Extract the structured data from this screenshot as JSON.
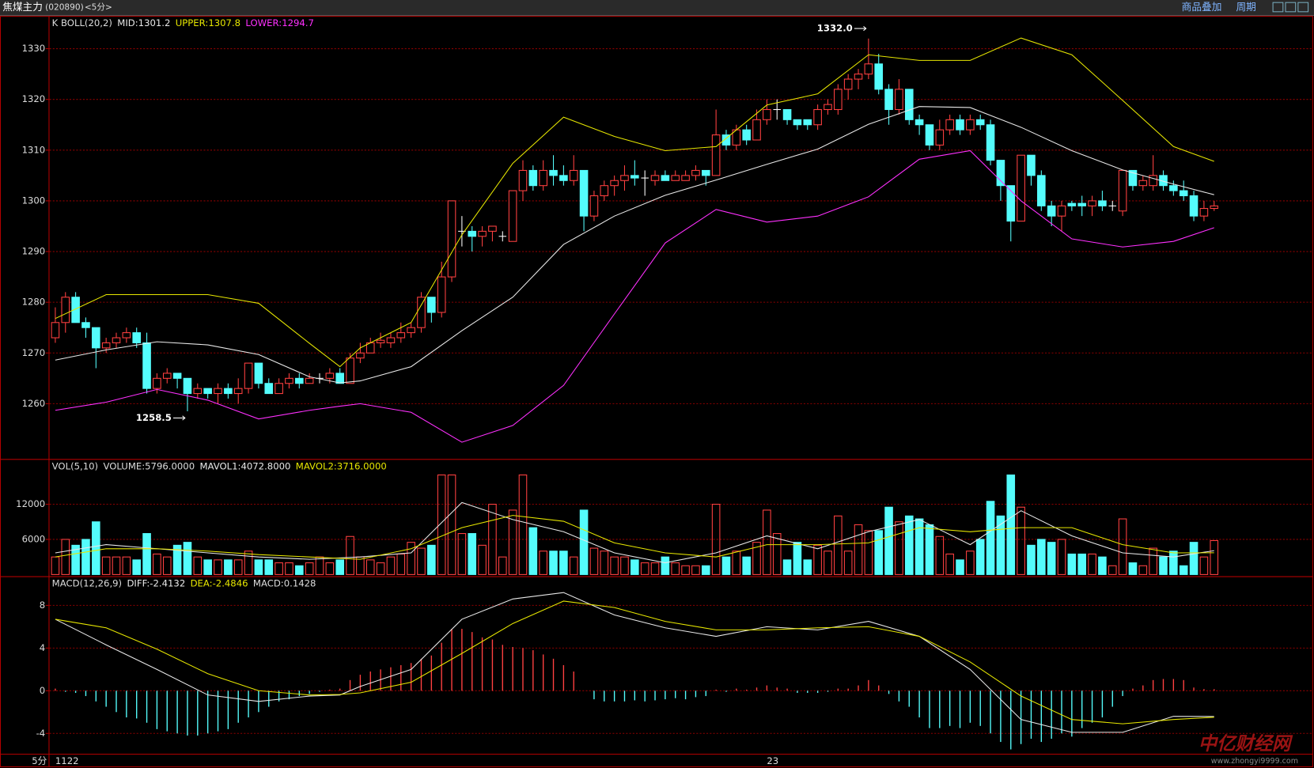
{
  "header": {
    "title": "焦煤主力",
    "code": "(020890)",
    "period": "<5分>",
    "buttons": [
      "商品叠加",
      "周期"
    ]
  },
  "axis": {
    "period": "5分",
    "labels": [
      {
        "index": 0,
        "label": "1122"
      },
      {
        "index": 70,
        "label": "23"
      }
    ]
  },
  "watermark": {
    "title": "中亿财经网",
    "url": "www.zhongyi9999.com"
  },
  "chart_data": [
    {
      "type": "candlestick",
      "title": "K  BOLL(20,2)",
      "up_color": "#ff4040",
      "down_color": "#54fcfc",
      "grid": true,
      "open": [
        1273,
        1276,
        1281,
        1276,
        1275,
        1271,
        1272,
        1273,
        1274,
        1272,
        1263,
        1265,
        1266,
        1265,
        1262,
        1263,
        1262,
        1263,
        1262,
        1263,
        1268,
        1264,
        1262,
        1264,
        1265,
        1264,
        1265,
        1265,
        1266,
        1264,
        1269,
        1270,
        1272,
        1272,
        1273,
        1274,
        1275,
        1281,
        1278,
        1285,
        1294,
        1294,
        1293,
        1294,
        1293,
        1292,
        1302,
        1306,
        1303,
        1306,
        1305,
        1304,
        1306,
        1297,
        1301,
        1303,
        1304,
        1305,
        1304.5,
        1304,
        1305,
        1304,
        1304,
        1305,
        1306,
        1305,
        1313,
        1311,
        1314,
        1312,
        1316,
        1318,
        1318,
        1316,
        1316,
        1315,
        1318,
        1318,
        1322,
        1324,
        1325,
        1327,
        1322,
        1318,
        1322,
        1316,
        1315,
        1311,
        1314,
        1316,
        1314,
        1316,
        1315,
        1308,
        1303,
        1296,
        1309,
        1305,
        1299,
        1297,
        1299.5,
        1299.5,
        1299,
        1300,
        1299,
        1298,
        1306,
        1303,
        1303,
        1305,
        1303,
        1302,
        1301,
        1297,
        1298.5
      ],
      "high": [
        1279,
        1282,
        1282,
        1277,
        1275,
        1273,
        1274,
        1275,
        1275,
        1274,
        1266,
        1267,
        1266,
        1265,
        1264,
        1263,
        1264,
        1264,
        1265,
        1268,
        1268,
        1265,
        1265,
        1266,
        1266,
        1266,
        1266,
        1267,
        1267,
        1270,
        1272,
        1273,
        1274,
        1274,
        1276,
        1276,
        1282,
        1281,
        1288,
        1300,
        1297,
        1295,
        1295,
        1295,
        1294,
        1302,
        1308,
        1307,
        1308,
        1309,
        1307,
        1309,
        1306,
        1302,
        1304,
        1305,
        1307,
        1308,
        1306,
        1306,
        1306,
        1306,
        1306,
        1307,
        1306,
        1318,
        1314,
        1315,
        1315,
        1318,
        1320,
        1320,
        1318,
        1316,
        1316,
        1319,
        1320,
        1323,
        1325,
        1326,
        1332,
        1329,
        1323,
        1324,
        1322,
        1317,
        1315,
        1316,
        1317,
        1317,
        1317,
        1317,
        1316,
        1308,
        1303,
        1309,
        1309,
        1306,
        1300,
        1300,
        1300,
        1301,
        1301,
        1302,
        1300,
        1306,
        1306,
        1305,
        1309,
        1306,
        1304,
        1304,
        1302,
        1300,
        1300
      ],
      "low": [
        1272,
        1274,
        1276,
        1273,
        1267,
        1270,
        1271,
        1272,
        1271,
        1262,
        1262,
        1264,
        1263,
        1258.5,
        1261,
        1261,
        1260,
        1261,
        1260,
        1262,
        1263,
        1262,
        1262,
        1263,
        1263,
        1264,
        1264,
        1264,
        1264,
        1264,
        1268,
        1270,
        1271,
        1271,
        1272,
        1273,
        1274,
        1276,
        1277,
        1284,
        1291,
        1290,
        1291,
        1292,
        1292,
        1292,
        1300,
        1302,
        1302,
        1303,
        1303,
        1303,
        1294,
        1296,
        1300,
        1301,
        1302,
        1303,
        1301,
        1303,
        1304,
        1304,
        1304,
        1304,
        1303,
        1305,
        1310,
        1310,
        1311,
        1312,
        1315,
        1316,
        1315,
        1314,
        1314,
        1314,
        1317,
        1317,
        1320,
        1322,
        1324,
        1321,
        1315,
        1317,
        1315,
        1313,
        1310,
        1310,
        1313,
        1313,
        1313,
        1314,
        1307,
        1300,
        1292,
        1296,
        1303,
        1298,
        1295,
        1294,
        1298,
        1297,
        1297,
        1298,
        1298,
        1297,
        1302,
        1302,
        1302,
        1302,
        1301,
        1300,
        1296,
        1296,
        1298
      ],
      "close": [
        1276,
        1281,
        1276,
        1275,
        1271,
        1272,
        1273,
        1274,
        1272,
        1263,
        1265,
        1266,
        1265,
        1262,
        1263,
        1262,
        1263,
        1262,
        1263,
        1268,
        1264,
        1262,
        1264,
        1265,
        1264,
        1265,
        1265,
        1266,
        1264,
        1269,
        1270,
        1272,
        1272.5,
        1273,
        1274,
        1275,
        1281,
        1278,
        1285,
        1300,
        1294,
        1293,
        1294,
        1295,
        1293,
        1302,
        1306,
        1303,
        1306,
        1305,
        1304,
        1306,
        1297,
        1301,
        1303,
        1304,
        1305,
        1304.5,
        1304.5,
        1305,
        1304,
        1305,
        1305,
        1306,
        1305,
        1313,
        1311,
        1314,
        1312,
        1316,
        1318,
        1318,
        1316,
        1315,
        1315,
        1318,
        1319,
        1322,
        1324,
        1325,
        1327,
        1322,
        1318,
        1322,
        1316,
        1315,
        1311,
        1314,
        1316,
        1314,
        1316,
        1315,
        1308,
        1303,
        1296,
        1309,
        1305,
        1299,
        1297,
        1299,
        1299,
        1299,
        1300,
        1299,
        1299,
        1306,
        1303,
        1304,
        1305,
        1303,
        1302,
        1301,
        1297,
        1298.5,
        1299
      ],
      "series": [
        {
          "name": "MID:1301.2",
          "color": "#e8e8e8",
          "x": [
            0,
            5,
            10,
            15,
            20,
            25,
            28,
            30,
            35,
            40,
            45,
            50,
            55,
            60,
            65,
            70,
            75,
            80,
            85,
            90,
            95,
            100,
            105,
            110,
            114
          ],
          "values": [
            1268.6,
            1270.6,
            1272.2,
            1271.6,
            1269.7,
            1265.3,
            1264.1,
            1264.5,
            1267.3,
            1274.4,
            1281,
            1291.4,
            1297,
            1301.1,
            1304.1,
            1307.2,
            1310.2,
            1315.1,
            1318.6,
            1318.4,
            1314.5,
            1309.9,
            1306.1,
            1303.3,
            1301.2
          ]
        },
        {
          "name": "UPPER:1307.8",
          "color": "#e6e600",
          "x": [
            0,
            5,
            10,
            15,
            20,
            25,
            28,
            30,
            35,
            40,
            45,
            50,
            55,
            60,
            65,
            70,
            75,
            80,
            85,
            90,
            95,
            100,
            105,
            110,
            114
          ],
          "values": [
            1276.8,
            1281.5,
            1281.5,
            1281.5,
            1279.8,
            1271.9,
            1267.3,
            1271,
            1276,
            1293.3,
            1307.4,
            1316.5,
            1312.7,
            1309.9,
            1310.7,
            1318.9,
            1321.1,
            1328.8,
            1327.7,
            1327.7,
            1332.1,
            1328.8,
            1319.8,
            1310.7,
            1307.8
          ]
        },
        {
          "name": "LOWER:1294.7",
          "color": "#ff30ff",
          "x": [
            0,
            5,
            10,
            15,
            20,
            25,
            28,
            30,
            35,
            40,
            45,
            50,
            55,
            60,
            65,
            70,
            75,
            80,
            85,
            90,
            95,
            100,
            105,
            110,
            114
          ],
          "values": [
            1258.7,
            1260.3,
            1262.8,
            1260.7,
            1257,
            1258.7,
            1259.5,
            1260,
            1258.3,
            1252.4,
            1255.7,
            1263.6,
            1277.7,
            1291.7,
            1298.3,
            1295.8,
            1297,
            1300.8,
            1308.2,
            1309.9,
            1300,
            1292.5,
            1290.9,
            1292,
            1294.7
          ]
        }
      ],
      "annotations": [
        "1332.0",
        "1258.5"
      ],
      "ylim": [
        1249.1,
        1336.3
      ],
      "yticks": [
        1260,
        1270,
        1280,
        1290,
        1300,
        1310,
        1320,
        1330
      ]
    },
    {
      "type": "bar",
      "title": "VOL(5,10)",
      "label": "VOLUME:5796.0000",
      "up_color": "#ff4040",
      "down_color": "#54fcfc",
      "grid": true,
      "values": [
        3000,
        6000,
        5000,
        6000,
        9000,
        3000,
        3000,
        3000,
        2500,
        7000,
        3500,
        3000,
        5000,
        5500,
        3000,
        2500,
        2500,
        2500,
        2500,
        4000,
        2500,
        2500,
        2000,
        2000,
        1500,
        2000,
        3000,
        2000,
        2500,
        6500,
        3000,
        2500,
        2000,
        3000,
        3500,
        5500,
        4500,
        5000,
        17000,
        17000,
        7000,
        7000,
        5000,
        12000,
        3000,
        11000,
        17000,
        8000,
        4000,
        4000,
        4000,
        3000,
        11000,
        4500,
        4000,
        3000,
        3000,
        2500,
        2000,
        2000,
        3000,
        2000,
        1500,
        1500,
        1500,
        12000,
        3000,
        4000,
        3000,
        5500,
        11000,
        7000,
        2500,
        5500,
        2500,
        5000,
        4000,
        10000,
        4000,
        8500,
        7500,
        7500,
        11500,
        9000,
        10000,
        9500,
        8500,
        6500,
        3500,
        2500,
        4000,
        6000,
        12500,
        10000,
        17000,
        11500,
        5000,
        6000,
        5500,
        6000,
        3500,
        3500,
        3500,
        3000,
        1500,
        9500,
        2000,
        1500,
        4500,
        3000,
        4000,
        1500,
        5500,
        3000,
        5796
      ],
      "series": [
        {
          "name": "MAVOL1:4072.8000",
          "color": "#e8e8e8",
          "x": [
            0,
            5,
            10,
            15,
            20,
            25,
            30,
            35,
            40,
            45,
            50,
            55,
            60,
            65,
            70,
            75,
            80,
            85,
            90,
            95,
            100,
            105,
            110,
            114
          ],
          "values": [
            3700,
            5100,
            4400,
            3700,
            3000,
            2600,
            3000,
            3700,
            12300,
            9400,
            7300,
            3700,
            2000,
            3700,
            6600,
            4400,
            7300,
            9400,
            5100,
            10900,
            6600,
            3700,
            3000,
            4072.8
          ]
        },
        {
          "name": "MAVOL2:3716.0000",
          "color": "#e6e600",
          "x": [
            0,
            5,
            10,
            15,
            20,
            25,
            30,
            35,
            40,
            45,
            50,
            55,
            60,
            65,
            70,
            75,
            80,
            85,
            90,
            95,
            100,
            105,
            110,
            114
          ],
          "values": [
            3000,
            4400,
            4400,
            4000,
            3400,
            3000,
            2600,
            4400,
            8000,
            10100,
            9100,
            5400,
            3700,
            3000,
            5100,
            5100,
            5400,
            8000,
            7300,
            8000,
            8000,
            5100,
            3700,
            3716
          ]
        }
      ],
      "ylim": [
        0,
        17300
      ],
      "yticks": [
        6000,
        12000
      ]
    },
    {
      "type": "macd",
      "title": "MACD(12,26,9)",
      "bar_name": "MACD:0.1428",
      "up_color": "#ff4040",
      "down_color": "#54fcfc",
      "values": [
        0.2,
        -0.1,
        -0.2,
        -0.5,
        -1,
        -1.5,
        -2,
        -2.5,
        -2.6,
        -3,
        -3.6,
        -3.8,
        -4,
        -4.2,
        -4.2,
        -4,
        -3.8,
        -3.6,
        -3,
        -2.5,
        -2,
        -1.5,
        -1,
        -0.8,
        -0.5,
        -0.3,
        -0.1,
        0.1,
        0.2,
        1,
        1.5,
        1.8,
        2,
        2.2,
        2.4,
        2.6,
        3,
        3.3,
        4.5,
        5.8,
        5.8,
        5.5,
        5,
        4.8,
        4.3,
        4.1,
        4,
        3.8,
        3.4,
        3,
        2.4,
        1.8,
        0,
        -0.8,
        -1,
        -1,
        -1,
        -0.9,
        -1,
        -0.9,
        -0.8,
        -0.7,
        -0.8,
        -0.6,
        -0.5,
        0.1,
        -0.1,
        0.2,
        0.1,
        0.3,
        0.5,
        0.3,
        0.2,
        -0.2,
        -0.2,
        -0.2,
        -0.1,
        0.2,
        0.2,
        0.5,
        1,
        0.5,
        -0.3,
        -1,
        -1.5,
        -2.5,
        -3.5,
        -3.5,
        -3.3,
        -3.5,
        -3,
        -3.3,
        -4,
        -4.8,
        -5.5,
        -5,
        -4.5,
        -4.8,
        -4.5,
        -4,
        -4.3,
        -3.5,
        -3,
        -2.5,
        -1.5,
        -0.5,
        0.2,
        0.5,
        1,
        1.1,
        1.1,
        1,
        0.3,
        0.15,
        0.1428
      ],
      "series": [
        {
          "name": "DIFF:-2.4132",
          "color": "#e8e8e8",
          "x": [
            0,
            5,
            10,
            15,
            20,
            25,
            28,
            30,
            35,
            40,
            45,
            50,
            55,
            60,
            65,
            70,
            75,
            80,
            85,
            90,
            95,
            100,
            105,
            110,
            114
          ],
          "values": [
            6.7,
            4.3,
            2,
            -0.4,
            -1,
            -0.5,
            -0.4,
            0.4,
            2,
            6.7,
            8.6,
            9.2,
            7.1,
            5.9,
            5.1,
            6,
            5.7,
            6.5,
            5.1,
            2,
            -2.7,
            -3.9,
            -3.9,
            -2.4,
            -2.4132
          ]
        },
        {
          "name": "DEA:-2.4846",
          "color": "#e6e600",
          "x": [
            0,
            5,
            10,
            15,
            20,
            25,
            28,
            30,
            35,
            40,
            45,
            50,
            55,
            60,
            65,
            70,
            75,
            80,
            85,
            90,
            95,
            100,
            105,
            110,
            114
          ],
          "values": [
            6.7,
            5.9,
            3.9,
            1.6,
            0,
            -0.4,
            -0.35,
            -0.2,
            0.8,
            3.5,
            6.3,
            8.4,
            7.8,
            6.5,
            5.7,
            5.7,
            5.9,
            6,
            5.1,
            2.7,
            -0.5,
            -2.7,
            -3.1,
            -2.7,
            -2.4846
          ]
        }
      ],
      "ylim": [
        -6.3,
        9.4
      ],
      "yticks": [
        -4,
        0,
        4,
        8
      ]
    }
  ]
}
